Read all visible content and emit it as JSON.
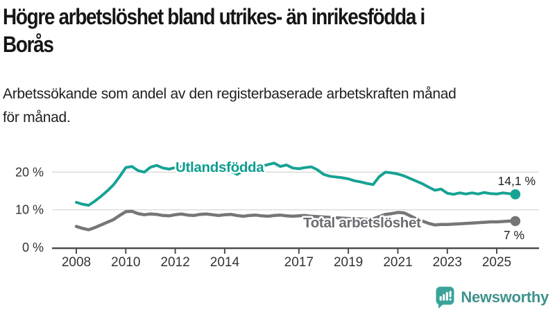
{
  "title_lines": [
    "Högre arbetslöshet bland utrikes- än inrikesfödda i",
    "Borås"
  ],
  "subtitle_lines": [
    "Arbetssökande som andel av den registerbaserade arbetskraften månad",
    "för månad."
  ],
  "colors": {
    "accent_teal": "#16a294",
    "series_gray": "#767676",
    "label_gray": "#6b6b72",
    "axis": "#4d4d4d",
    "grid": "#d9d9d9",
    "tick_text": "#333333",
    "value_label": "#1f1f1f",
    "logo_teal": "#3ba39b",
    "logo_text": "#3f928d"
  },
  "chart_data": {
    "type": "line",
    "title": "Högre arbetslöshet bland utrikes- än inrikesfödda i Borås",
    "subtitle": "Arbetssökande som andel av den registerbaserade arbetskraften månad för månad.",
    "unit": "%",
    "grid": "horizontal",
    "legend": "inline-labels",
    "x_axis": {
      "unit": "year",
      "ticks": [
        2008,
        2010,
        2012,
        2014,
        2017,
        2019,
        2021,
        2023,
        2025
      ],
      "range": [
        2008.0,
        2025.75
      ]
    },
    "y_axis": {
      "ticks": [
        0,
        10,
        20
      ],
      "labels": [
        "0 %",
        "10 %",
        "20 %"
      ],
      "range": [
        0,
        24
      ]
    },
    "x_start": 2008.0,
    "x_step_years": 0.25,
    "series": [
      {
        "name": "Utlandsfödda",
        "color": "#16a294",
        "label_color": "#0f9e91",
        "width": 4,
        "end_label": "14,1 %",
        "end_value": 14.1,
        "label_pos": {
          "x": 253,
          "y": 248
        },
        "end_label_pos": {
          "x": 772,
          "y": 267
        },
        "values": [
          12.0,
          11.5,
          11.2,
          12.3,
          13.6,
          15.0,
          16.6,
          18.8,
          21.2,
          21.5,
          20.4,
          20.0,
          21.3,
          21.8,
          21.1,
          20.8,
          21.2,
          21.5,
          21.0,
          20.8,
          21.4,
          22.0,
          21.4,
          20.6,
          21.2,
          20.3,
          19.4,
          20.3,
          20.9,
          21.3,
          21.6,
          22.0,
          22.4,
          21.5,
          21.9,
          21.1,
          20.9,
          21.2,
          21.4,
          20.6,
          19.4,
          18.9,
          18.7,
          18.5,
          18.2,
          17.7,
          17.4,
          17.0,
          16.7,
          18.8,
          20.0,
          19.8,
          19.5,
          19.0,
          18.3,
          17.6,
          16.9,
          16.0,
          15.2,
          15.5,
          14.4,
          14.1,
          14.5,
          14.2,
          14.5,
          14.2,
          14.6,
          14.3,
          14.2,
          14.5,
          14.3,
          14.1
        ]
      },
      {
        "name": "Total arbetslöshet",
        "color": "#767676",
        "label_color": "#6b6b72",
        "width": 4.5,
        "end_label": "7 %",
        "end_value": 7.0,
        "label_pos": {
          "x": 437,
          "y": 328
        },
        "end_label_pos": {
          "x": 756,
          "y": 345
        },
        "values": [
          5.6,
          5.1,
          4.7,
          5.3,
          6.0,
          6.7,
          7.4,
          8.5,
          9.5,
          9.6,
          9.0,
          8.7,
          8.9,
          8.8,
          8.5,
          8.4,
          8.7,
          8.9,
          8.6,
          8.5,
          8.8,
          8.9,
          8.7,
          8.5,
          8.7,
          8.8,
          8.5,
          8.3,
          8.5,
          8.6,
          8.4,
          8.3,
          8.5,
          8.6,
          8.4,
          8.3,
          8.4,
          8.5,
          8.3,
          8.2,
          8.1,
          8.0,
          7.9,
          7.8,
          7.7,
          7.6,
          7.6,
          7.5,
          7.6,
          8.2,
          8.8,
          9.0,
          9.3,
          9.2,
          8.4,
          7.6,
          7.0,
          6.4,
          6.0,
          6.1,
          6.1,
          6.2,
          6.3,
          6.4,
          6.5,
          6.6,
          6.7,
          6.8,
          6.8,
          6.9,
          7.0,
          7.0
        ]
      }
    ]
  },
  "logo": {
    "text": "Newsworthy",
    "icon": "bar-chart-speech-bubble"
  }
}
